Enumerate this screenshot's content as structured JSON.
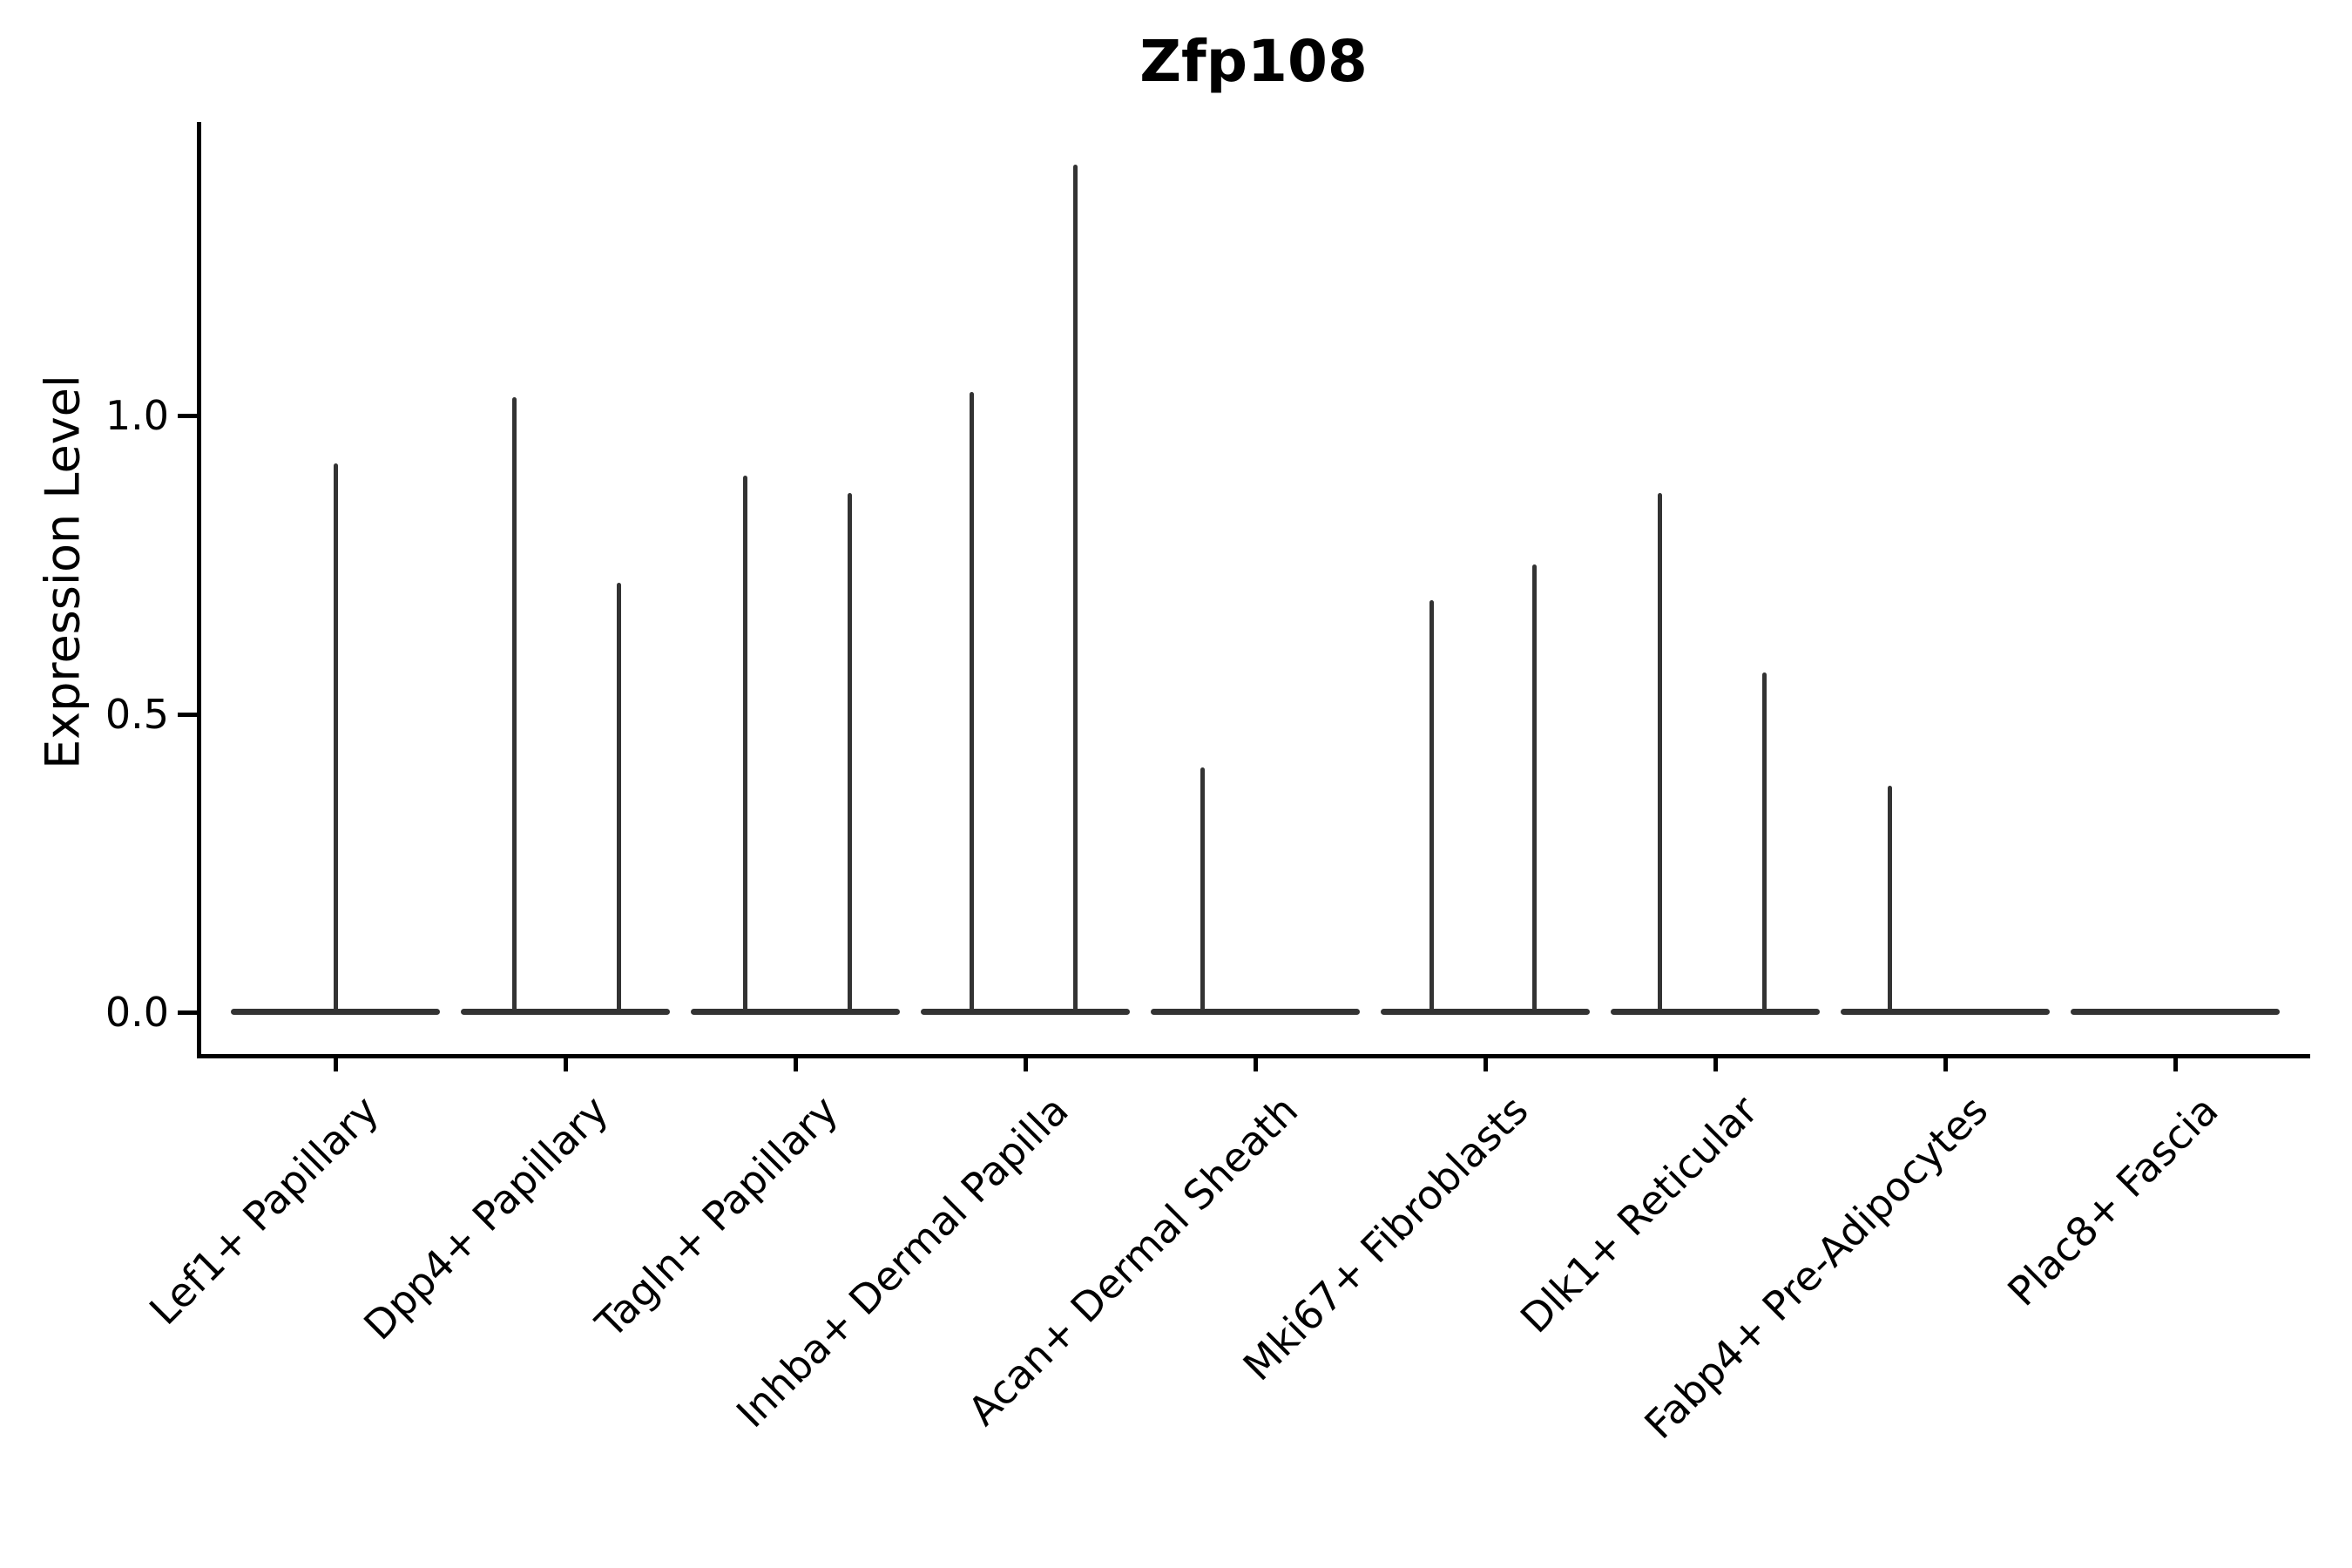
{
  "chart_data": {
    "type": "violin",
    "title": "Zfp108",
    "xlabel": "",
    "ylabel": "Expression Level",
    "yticks": [
      0.0,
      0.5,
      1.0
    ],
    "ylim": [
      0,
      1.49
    ],
    "grid": false,
    "legend": "none",
    "description": "Violin plot of gene expression; each cluster shows a flat density base at 0 with thin spikes reaching the maximum expression values of the few expressing cells.",
    "categories": [
      "Lef1+ Papillary",
      "Dpp4+ Papillary",
      "Tagln+ Papillary",
      "Inhba+ Dermal Papilla",
      "Acan+ Dermal Sheath",
      "Mki67+ Fibroblasts",
      "Dlk1+ Reticular",
      "Fabp4+ Pre-Adipocytes",
      "Plac8+ Fascia"
    ],
    "violins": [
      {
        "category": "Lef1+ Papillary",
        "spikes": [
          {
            "dx": 0,
            "value": 0.92
          }
        ]
      },
      {
        "category": "Dpp4+ Papillary",
        "spikes": [
          {
            "dx": -59,
            "value": 1.03
          },
          {
            "dx": 61,
            "value": 0.72
          }
        ]
      },
      {
        "category": "Tagln+ Papillary",
        "spikes": [
          {
            "dx": -58,
            "value": 0.9
          },
          {
            "dx": 62,
            "value": 0.87
          }
        ]
      },
      {
        "category": "Inhba+ Dermal Papilla",
        "spikes": [
          {
            "dx": -62,
            "value": 1.04
          },
          {
            "dx": 57,
            "value": 1.42
          }
        ]
      },
      {
        "category": "Acan+ Dermal Sheath",
        "spikes": [
          {
            "dx": -61,
            "value": 0.41
          }
        ]
      },
      {
        "category": "Mki67+ Fibroblasts",
        "spikes": [
          {
            "dx": -62,
            "value": 0.69
          },
          {
            "dx": 56,
            "value": 0.75
          }
        ]
      },
      {
        "category": "Dlk1+ Reticular",
        "spikes": [
          {
            "dx": -64,
            "value": 0.87
          },
          {
            "dx": 56,
            "value": 0.57
          }
        ]
      },
      {
        "category": "Fabp4+ Pre-Adipocytes",
        "spikes": [
          {
            "dx": -64,
            "value": 0.38
          }
        ]
      },
      {
        "category": "Plac8+ Fascia",
        "spikes": []
      }
    ]
  }
}
